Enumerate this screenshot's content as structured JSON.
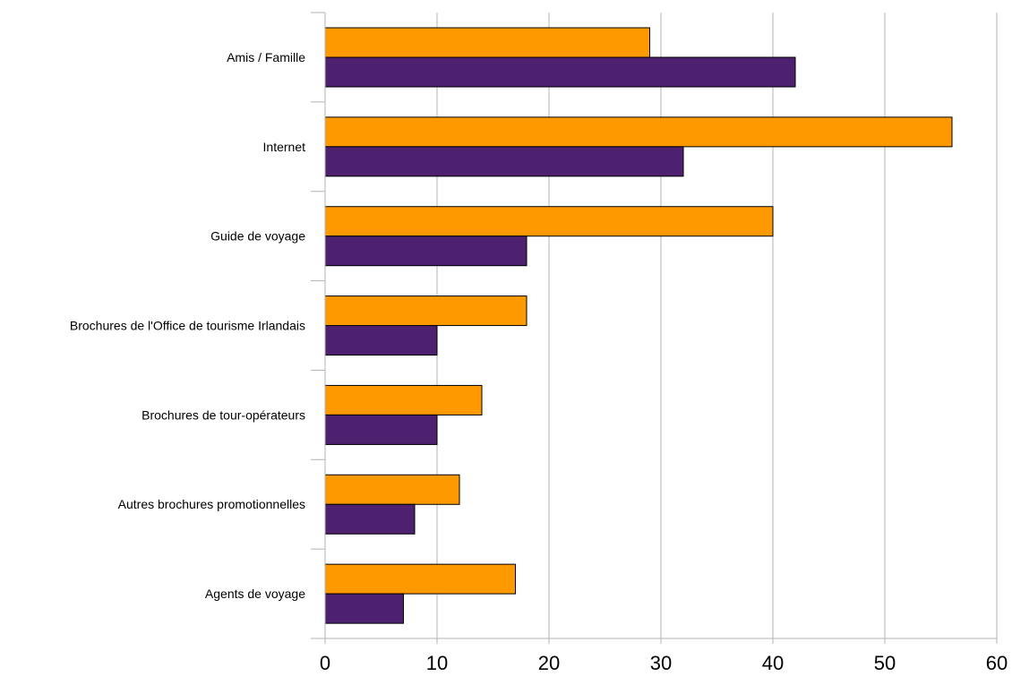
{
  "chart_data": {
    "type": "bar",
    "orientation": "horizontal",
    "categories": [
      "Amis / Famille",
      "Internet",
      "Guide de voyage",
      "Brochures de l'Office de tourisme Irlandais",
      "Brochures de tour-opérateurs",
      "Autres brochures promotionnelles",
      "Agents de voyage"
    ],
    "series": [
      {
        "color": "#ff9900",
        "values": [
          29,
          56,
          40,
          18,
          14,
          12,
          17
        ]
      },
      {
        "color": "#4d2070",
        "values": [
          42,
          32,
          18,
          10,
          10,
          8,
          7
        ]
      }
    ],
    "xlim": [
      0,
      60
    ],
    "xticks": [
      0,
      10,
      20,
      30,
      40,
      50,
      60
    ],
    "grid": true,
    "title": "",
    "xlabel": "",
    "ylabel": ""
  }
}
